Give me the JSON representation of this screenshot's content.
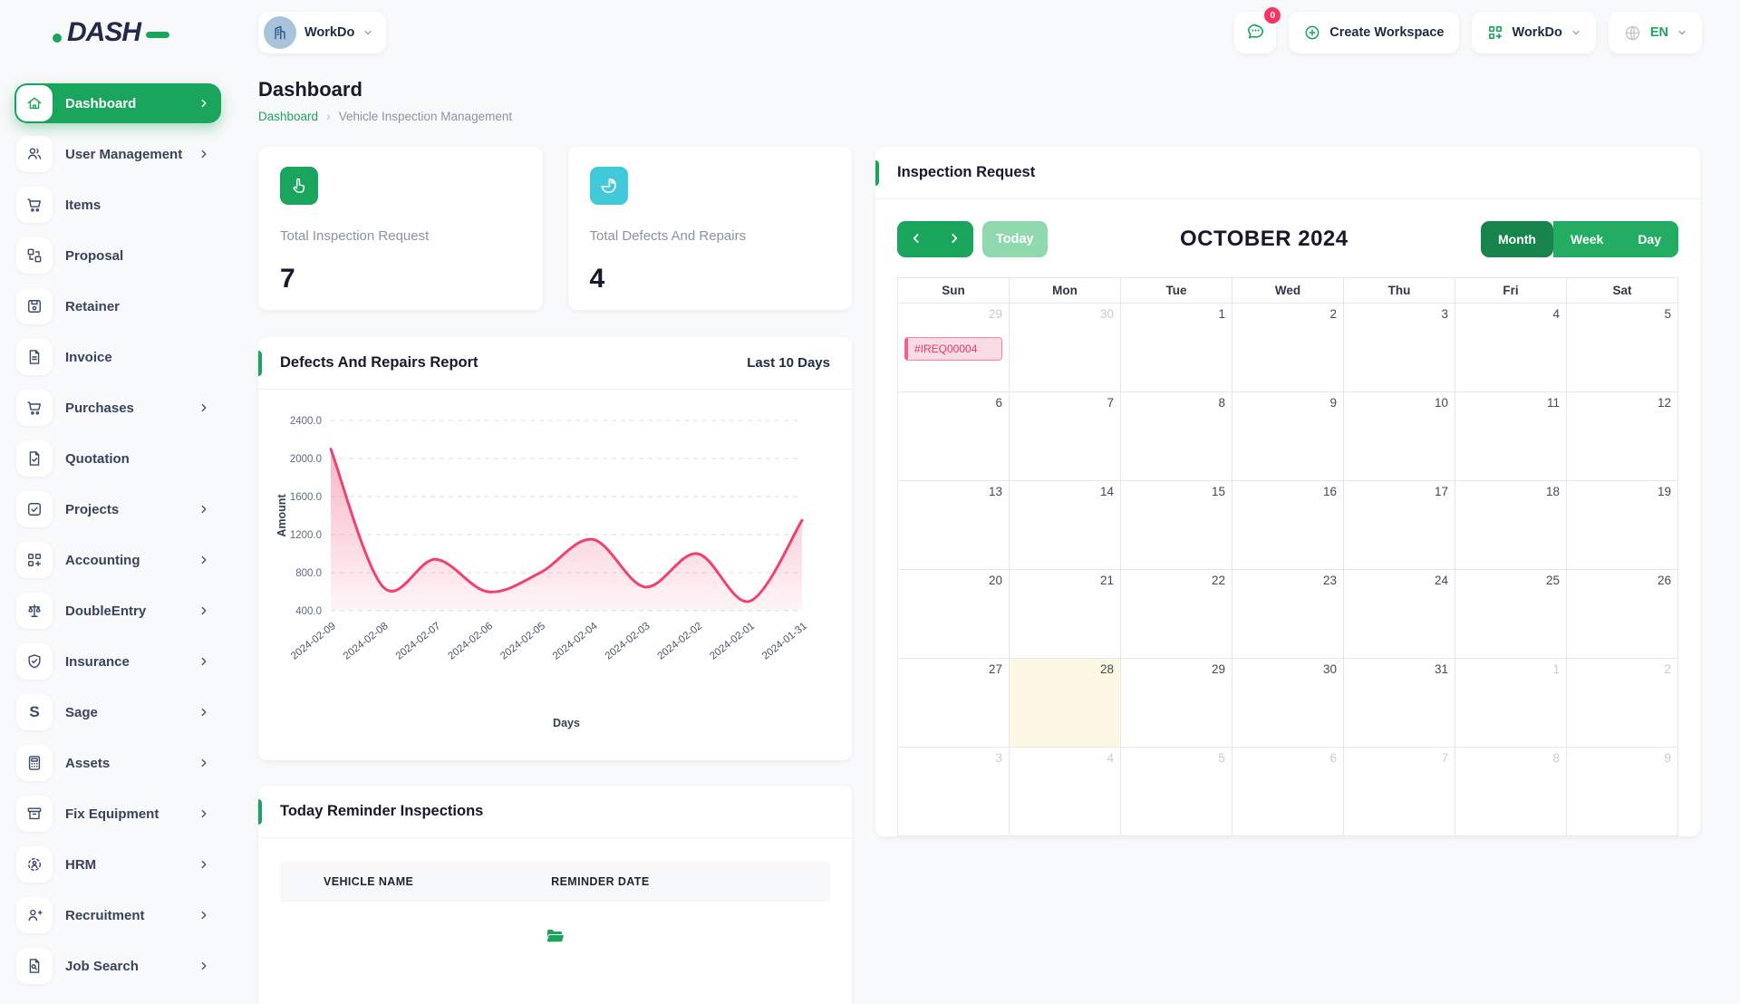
{
  "app": {
    "logo_text": "DASH",
    "brand_green": "#1aa55c",
    "brand_navy": "#232a49"
  },
  "header": {
    "workspace_switcher": {
      "label": "WorkDo",
      "icon": "building-icon"
    },
    "messages": {
      "icon": "chat-icon",
      "badge": "0"
    },
    "create_workspace": {
      "label": "Create Workspace",
      "icon": "plus-circle-icon"
    },
    "apps_menu": {
      "label": "WorkDo",
      "icon": "grid-plus-icon"
    },
    "language_menu": {
      "label": "EN",
      "icon": "globe-icon"
    }
  },
  "sidebar": {
    "items": [
      {
        "label": "Dashboard",
        "icon": "home-icon",
        "active": true,
        "chevron": true
      },
      {
        "label": "User Management",
        "icon": "users-icon",
        "chevron": true
      },
      {
        "label": "Items",
        "icon": "cart-icon",
        "chevron": false
      },
      {
        "label": "Proposal",
        "icon": "swap-boxes-icon",
        "chevron": false
      },
      {
        "label": "Retainer",
        "icon": "disk-icon",
        "chevron": false
      },
      {
        "label": "Invoice",
        "icon": "invoice-icon",
        "chevron": false
      },
      {
        "label": "Purchases",
        "icon": "cart-icon",
        "chevron": true
      },
      {
        "label": "Quotation",
        "icon": "file-check-icon",
        "chevron": false
      },
      {
        "label": "Projects",
        "icon": "check-square-icon",
        "chevron": true
      },
      {
        "label": "Accounting",
        "icon": "grid-plus-icon",
        "chevron": true
      },
      {
        "label": "DoubleEntry",
        "icon": "scales-icon",
        "chevron": true
      },
      {
        "label": "Insurance",
        "icon": "shield-check-icon",
        "chevron": true
      },
      {
        "label": "Sage",
        "icon": "letter-s-icon",
        "chevron": true
      },
      {
        "label": "Assets",
        "icon": "calculator-icon",
        "chevron": true
      },
      {
        "label": "Fix Equipment",
        "icon": "archive-icon",
        "chevron": true
      },
      {
        "label": "HRM",
        "icon": "person-target-icon",
        "chevron": true
      },
      {
        "label": "Recruitment",
        "icon": "user-plus-icon",
        "chevron": true
      },
      {
        "label": "Job Search",
        "icon": "file-search-icon",
        "chevron": true
      }
    ]
  },
  "page": {
    "title": "Dashboard",
    "breadcrumb": [
      {
        "label": "Dashboard",
        "link": true
      },
      {
        "label": "Vehicle Inspection Management",
        "link": false
      }
    ]
  },
  "stats": [
    {
      "label": "Total Inspection Request",
      "value": "7",
      "icon": "tap-icon",
      "color": "#1aa55c"
    },
    {
      "label": "Total Defects And Repairs",
      "value": "4",
      "icon": "pie-chart-icon",
      "color": "#41c8d9"
    }
  ],
  "chart_card": {
    "title": "Defects And Repairs Report",
    "range_label": "Last 10 Days"
  },
  "chart_data": {
    "type": "area",
    "title": "Defects And Repairs Report",
    "x": [
      "2024-02-09",
      "2024-02-08",
      "2024-02-07",
      "2024-02-06",
      "2024-02-05",
      "2024-02-04",
      "2024-02-03",
      "2024-02-02",
      "2024-02-01",
      "2024-01-31"
    ],
    "values": [
      2100,
      650,
      940,
      600,
      800,
      1150,
      650,
      1000,
      500,
      1350
    ],
    "xlabel": "Days",
    "ylabel": "Amount",
    "ylim": [
      400,
      2400
    ],
    "yticks": [
      400,
      800,
      1200,
      1600,
      2000,
      2400
    ],
    "grid": true,
    "legend": "none",
    "line_color": "#f1416c"
  },
  "calendar": {
    "panel_title": "Inspection Request",
    "toolbar": {
      "today_label": "Today",
      "title": "OCTOBER 2024",
      "views": [
        {
          "label": "Month",
          "active": true
        },
        {
          "label": "Week",
          "active": false
        },
        {
          "label": "Day",
          "active": false
        }
      ]
    },
    "day_headers": [
      "Sun",
      "Mon",
      "Tue",
      "Wed",
      "Thu",
      "Fri",
      "Sat"
    ],
    "weeks": [
      [
        {
          "d": 29,
          "muted": true,
          "event": "#IREQ00004"
        },
        {
          "d": 30,
          "muted": true
        },
        {
          "d": 1
        },
        {
          "d": 2
        },
        {
          "d": 3
        },
        {
          "d": 4
        },
        {
          "d": 5
        }
      ],
      [
        {
          "d": 6
        },
        {
          "d": 7
        },
        {
          "d": 8
        },
        {
          "d": 9
        },
        {
          "d": 10
        },
        {
          "d": 11
        },
        {
          "d": 12
        }
      ],
      [
        {
          "d": 13
        },
        {
          "d": 14
        },
        {
          "d": 15
        },
        {
          "d": 16
        },
        {
          "d": 17
        },
        {
          "d": 18
        },
        {
          "d": 19
        }
      ],
      [
        {
          "d": 20
        },
        {
          "d": 21
        },
        {
          "d": 22
        },
        {
          "d": 23
        },
        {
          "d": 24
        },
        {
          "d": 25
        },
        {
          "d": 26
        }
      ],
      [
        {
          "d": 27
        },
        {
          "d": 28,
          "today": true
        },
        {
          "d": 29
        },
        {
          "d": 30
        },
        {
          "d": 31
        },
        {
          "d": 1,
          "muted": true
        },
        {
          "d": 2,
          "muted": true
        }
      ],
      [
        {
          "d": 3,
          "muted": true
        },
        {
          "d": 4,
          "muted": true
        },
        {
          "d": 5,
          "muted": true
        },
        {
          "d": 6,
          "muted": true
        },
        {
          "d": 7,
          "muted": true
        },
        {
          "d": 8,
          "muted": true
        },
        {
          "d": 9,
          "muted": true
        }
      ]
    ],
    "event_color": "#e23a63",
    "today_highlight": "#fcf8e3"
  },
  "reminders": {
    "title": "Today Reminder Inspections",
    "columns": [
      "VEHICLE NAME",
      "REMINDER DATE"
    ],
    "empty_icon": "folder-open-icon"
  }
}
